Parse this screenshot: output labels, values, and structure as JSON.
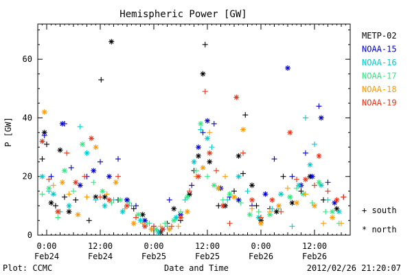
{
  "chart_data": {
    "type": "scatter",
    "title": "Hemispheric Power [GW]",
    "ylabel": "P [GW]",
    "xlabel": "Date and Time",
    "ylim": [
      0,
      72
    ],
    "yticks": [
      0,
      20,
      40,
      60
    ],
    "x_unit": "hours since 2012-02-24 00:00 UT",
    "xlim": [
      -2.0,
      68.0
    ],
    "xticks": [
      {
        "x": 0,
        "label_top": "0:00",
        "label_bottom": "Feb24"
      },
      {
        "x": 12,
        "label_top": "12:00",
        "label_bottom": "Feb24"
      },
      {
        "x": 24,
        "label_top": "0:00",
        "label_bottom": "Feb25"
      },
      {
        "x": 36,
        "label_top": "12:00",
        "label_bottom": "Feb25"
      },
      {
        "x": 48,
        "label_top": "0:00",
        "label_bottom": "Feb26"
      },
      {
        "x": 60,
        "label_top": "12:00",
        "label_bottom": "Feb26"
      }
    ],
    "legend_position": "right",
    "marker_legend": [
      {
        "symbol": "+",
        "label": "south"
      },
      {
        "symbol": "*",
        "label": "north"
      }
    ],
    "footer_left": "Plot: CCMC",
    "footer_right": "2012/02/26 21:20:07",
    "series": [
      {
        "name": "METP-02",
        "color": "#000000",
        "points": [
          [
            -1.0,
            26,
            "+"
          ],
          [
            -0.5,
            35,
            "*"
          ],
          [
            0.0,
            31,
            "+"
          ],
          [
            1.0,
            11,
            "*"
          ],
          [
            2.0,
            10,
            "+"
          ],
          [
            3.0,
            29,
            "*"
          ],
          [
            4.0,
            13,
            "+"
          ],
          [
            5.0,
            8,
            "*"
          ],
          [
            6.5,
            12,
            "+"
          ],
          [
            9.5,
            5,
            "+"
          ],
          [
            11.0,
            13,
            "*"
          ],
          [
            12.2,
            53,
            "+"
          ],
          [
            13.0,
            13,
            "*"
          ],
          [
            14.5,
            66,
            "*"
          ],
          [
            16.0,
            12,
            "+"
          ],
          [
            18.0,
            12,
            "*"
          ],
          [
            19.5,
            9,
            "+"
          ],
          [
            21.5,
            7,
            "*"
          ],
          [
            23.5,
            2,
            "+"
          ],
          [
            25.5,
            1,
            "*"
          ],
          [
            27.0,
            4,
            "+"
          ],
          [
            28.5,
            9,
            "*"
          ],
          [
            30.0,
            5,
            "+"
          ],
          [
            32.0,
            14,
            "*"
          ],
          [
            33.0,
            22,
            "+"
          ],
          [
            34.0,
            27,
            "*"
          ],
          [
            35.0,
            55,
            "*"
          ],
          [
            35.5,
            65,
            "+"
          ],
          [
            36.5,
            25,
            "*"
          ],
          [
            38.5,
            10,
            "+"
          ],
          [
            40.0,
            10,
            "*"
          ],
          [
            42.0,
            15,
            "+"
          ],
          [
            43.0,
            27,
            "*"
          ],
          [
            44.0,
            21,
            "+"
          ],
          [
            44.5,
            41,
            "+"
          ],
          [
            46.0,
            17,
            "*"
          ],
          [
            47.0,
            10,
            "+"
          ],
          [
            48.0,
            5,
            "*"
          ],
          [
            50.0,
            9,
            "+"
          ],
          [
            51.5,
            8,
            "*"
          ],
          [
            53.0,
            20,
            "+"
          ],
          [
            55.0,
            11,
            "*"
          ],
          [
            57.0,
            15,
            "+"
          ],
          [
            59.0,
            20,
            "*"
          ],
          [
            62.0,
            12,
            "+"
          ],
          [
            65.0,
            9,
            "*"
          ]
        ]
      },
      {
        "name": "NOAA-15",
        "color": "#0000cc",
        "points": [
          [
            -0.5,
            34,
            "+"
          ],
          [
            1.0,
            20,
            "+"
          ],
          [
            3.5,
            38,
            "*"
          ],
          [
            4.0,
            38,
            "+"
          ],
          [
            5.5,
            23,
            "+"
          ],
          [
            7.5,
            17,
            "*"
          ],
          [
            9.0,
            20,
            "+"
          ],
          [
            10.5,
            22,
            "*"
          ],
          [
            12.0,
            25,
            "+"
          ],
          [
            14.0,
            20,
            "*"
          ],
          [
            16.0,
            26,
            "+"
          ],
          [
            18.0,
            12,
            "*"
          ],
          [
            20.0,
            10,
            "+"
          ],
          [
            22.0,
            5,
            "*"
          ],
          [
            24.0,
            3,
            "+"
          ],
          [
            26.0,
            2,
            "*"
          ],
          [
            27.5,
            12,
            "+"
          ],
          [
            30.0,
            7,
            "*"
          ],
          [
            32.5,
            17,
            "+"
          ],
          [
            34.0,
            30,
            "*"
          ],
          [
            35.0,
            35,
            "+"
          ],
          [
            36.0,
            39,
            "*"
          ],
          [
            37.5,
            38,
            "+"
          ],
          [
            39.0,
            16,
            "*"
          ],
          [
            41.0,
            13,
            "+"
          ],
          [
            43.0,
            12,
            "*"
          ],
          [
            46.0,
            10,
            "+"
          ],
          [
            49.0,
            14,
            "*"
          ],
          [
            51.0,
            26,
            "+"
          ],
          [
            54.0,
            57,
            "*"
          ],
          [
            55.0,
            20,
            "+"
          ],
          [
            57.0,
            17,
            "*"
          ],
          [
            58.0,
            28,
            "+"
          ],
          [
            59.5,
            20,
            "*"
          ],
          [
            61.0,
            44,
            "+"
          ],
          [
            61.5,
            40,
            "*"
          ],
          [
            63.0,
            18,
            "+"
          ],
          [
            64.5,
            11,
            "*"
          ],
          [
            66.5,
            13,
            "+"
          ]
        ]
      },
      {
        "name": "NOAA-16",
        "color": "#00cccc",
        "points": [
          [
            -1.0,
            20,
            "*"
          ],
          [
            0.5,
            15,
            "+"
          ],
          [
            1.5,
            14,
            "*"
          ],
          [
            3.0,
            8,
            "+"
          ],
          [
            5.0,
            10,
            "*"
          ],
          [
            7.5,
            37,
            "+"
          ],
          [
            9.0,
            28,
            "*"
          ],
          [
            11.0,
            12,
            "+"
          ],
          [
            13.0,
            10,
            "*"
          ],
          [
            15.0,
            12,
            "+"
          ],
          [
            17.0,
            8,
            "*"
          ],
          [
            19.0,
            10,
            "+"
          ],
          [
            21.0,
            5,
            "*"
          ],
          [
            23.0,
            4,
            "+"
          ],
          [
            25.0,
            1,
            "*"
          ],
          [
            27.0,
            3,
            "+"
          ],
          [
            29.0,
            6,
            "*"
          ],
          [
            31.0,
            12,
            "+"
          ],
          [
            33.0,
            25,
            "*"
          ],
          [
            34.5,
            36,
            "+"
          ],
          [
            36.0,
            33,
            "*"
          ],
          [
            37.0,
            30,
            "+"
          ],
          [
            38.5,
            16,
            "*"
          ],
          [
            40.5,
            12,
            "+"
          ],
          [
            43.0,
            20,
            "*"
          ],
          [
            45.0,
            15,
            "+"
          ],
          [
            47.5,
            6,
            "*"
          ],
          [
            50.5,
            9,
            "+"
          ],
          [
            52.5,
            14,
            "*"
          ],
          [
            55.0,
            3,
            "+"
          ],
          [
            56.5,
            17,
            "*"
          ],
          [
            58.0,
            40,
            "+"
          ],
          [
            59.0,
            24,
            "*"
          ],
          [
            60.0,
            31,
            "+"
          ],
          [
            61.5,
            17,
            "*"
          ],
          [
            63.0,
            12,
            "+"
          ],
          [
            65.5,
            8,
            "*"
          ]
        ]
      },
      {
        "name": "NOAA-17",
        "color": "#33e680",
        "points": [
          [
            -1.0,
            14,
            "+"
          ],
          [
            0.5,
            16,
            "*"
          ],
          [
            2.5,
            6,
            "+"
          ],
          [
            4.0,
            22,
            "*"
          ],
          [
            6.0,
            15,
            "+"
          ],
          [
            8.0,
            31,
            "*"
          ],
          [
            10.5,
            18,
            "+"
          ],
          [
            12.5,
            15,
            "*"
          ],
          [
            14.5,
            11,
            "+"
          ],
          [
            16.5,
            12,
            "*"
          ],
          [
            18.5,
            11,
            "+"
          ],
          [
            20.5,
            7,
            "*"
          ],
          [
            22.5,
            4,
            "+"
          ],
          [
            24.5,
            2,
            "*"
          ],
          [
            26.5,
            4,
            "+"
          ],
          [
            28.5,
            5,
            "*"
          ],
          [
            30.0,
            8,
            "+"
          ],
          [
            31.5,
            13,
            "*"
          ],
          [
            33.5,
            22,
            "+"
          ],
          [
            34.5,
            38,
            "*"
          ],
          [
            36.0,
            20,
            "+"
          ],
          [
            37.5,
            17,
            "*"
          ],
          [
            39.5,
            12,
            "+"
          ],
          [
            41.0,
            14,
            "*"
          ],
          [
            43.5,
            11,
            "+"
          ],
          [
            45.5,
            7,
            "*"
          ],
          [
            47.5,
            8,
            "+"
          ],
          [
            50.0,
            7,
            "*"
          ],
          [
            52.0,
            9,
            "+"
          ],
          [
            54.5,
            13,
            "*"
          ],
          [
            56.0,
            16,
            "+"
          ],
          [
            57.5,
            14,
            "*"
          ],
          [
            59.5,
            11,
            "+"
          ],
          [
            61.0,
            18,
            "*"
          ],
          [
            62.5,
            8,
            "+"
          ],
          [
            64.0,
            8,
            "*"
          ],
          [
            65.5,
            4,
            "+"
          ]
        ]
      },
      {
        "name": "NOAA-18",
        "color": "#ff9900",
        "points": [
          [
            -0.5,
            42,
            "*"
          ],
          [
            1.5,
            17,
            "+"
          ],
          [
            3.5,
            18,
            "*"
          ],
          [
            5.0,
            14,
            "+"
          ],
          [
            7.0,
            7,
            "*"
          ],
          [
            9.0,
            13,
            "+"
          ],
          [
            11.0,
            30,
            "*"
          ],
          [
            13.5,
            14,
            "+"
          ],
          [
            15.5,
            18,
            "*"
          ],
          [
            17.5,
            9,
            "+"
          ],
          [
            19.5,
            4,
            "*"
          ],
          [
            21.5,
            4,
            "+"
          ],
          [
            23.5,
            2,
            "*"
          ],
          [
            25.5,
            3,
            "+"
          ],
          [
            27.5,
            2,
            "*"
          ],
          [
            29.5,
            3,
            "+"
          ],
          [
            31.5,
            8,
            "*"
          ],
          [
            33.5,
            20,
            "+"
          ],
          [
            35.0,
            23,
            "*"
          ],
          [
            36.5,
            35,
            "+"
          ],
          [
            38.5,
            16,
            "*"
          ],
          [
            40.0,
            20,
            "+"
          ],
          [
            42.0,
            13,
            "*"
          ],
          [
            44.0,
            36,
            "*"
          ],
          [
            46.0,
            9,
            "+"
          ],
          [
            48.0,
            4,
            "*"
          ],
          [
            50.0,
            8,
            "+"
          ],
          [
            52.0,
            10,
            "*"
          ],
          [
            54.0,
            16,
            "+"
          ],
          [
            56.0,
            11,
            "*"
          ],
          [
            58.0,
            14,
            "+"
          ],
          [
            60.0,
            10,
            "*"
          ],
          [
            62.0,
            4,
            "+"
          ],
          [
            64.0,
            6,
            "*"
          ],
          [
            66.0,
            4,
            "+"
          ]
        ]
      },
      {
        "name": "NOAA-19",
        "color": "#e63319",
        "points": [
          [
            -1.0,
            32,
            "*"
          ],
          [
            0.5,
            19,
            "+"
          ],
          [
            2.5,
            8,
            "*"
          ],
          [
            4.5,
            28,
            "+"
          ],
          [
            6.5,
            18,
            "*"
          ],
          [
            8.5,
            20,
            "+"
          ],
          [
            10.0,
            33,
            "*"
          ],
          [
            12.0,
            13,
            "+"
          ],
          [
            14.0,
            12,
            "*"
          ],
          [
            16.0,
            20,
            "+"
          ],
          [
            18.0,
            10,
            "*"
          ],
          [
            20.0,
            6,
            "+"
          ],
          [
            22.0,
            3,
            "*"
          ],
          [
            24.0,
            3,
            "+"
          ],
          [
            26.0,
            2,
            "*"
          ],
          [
            28.0,
            3,
            "+"
          ],
          [
            30.0,
            6,
            "*"
          ],
          [
            32.0,
            15,
            "+"
          ],
          [
            34.0,
            20,
            "*"
          ],
          [
            35.5,
            49,
            "+"
          ],
          [
            36.5,
            28,
            "*"
          ],
          [
            38.0,
            22,
            "+"
          ],
          [
            39.5,
            10,
            "*"
          ],
          [
            41.0,
            4,
            "+"
          ],
          [
            42.5,
            47,
            "*"
          ],
          [
            44.0,
            28,
            "+"
          ],
          [
            46.0,
            12,
            "*"
          ],
          [
            48.0,
            6,
            "+"
          ],
          [
            50.5,
            12,
            "*"
          ],
          [
            52.5,
            8,
            "+"
          ],
          [
            54.5,
            35,
            "*"
          ],
          [
            56.0,
            19,
            "+"
          ],
          [
            58.0,
            19,
            "*"
          ],
          [
            60.0,
            17,
            "+"
          ],
          [
            61.0,
            27,
            "*"
          ],
          [
            63.0,
            15,
            "+"
          ],
          [
            65.0,
            12,
            "*"
          ],
          [
            66.5,
            13,
            "+"
          ]
        ]
      }
    ]
  }
}
